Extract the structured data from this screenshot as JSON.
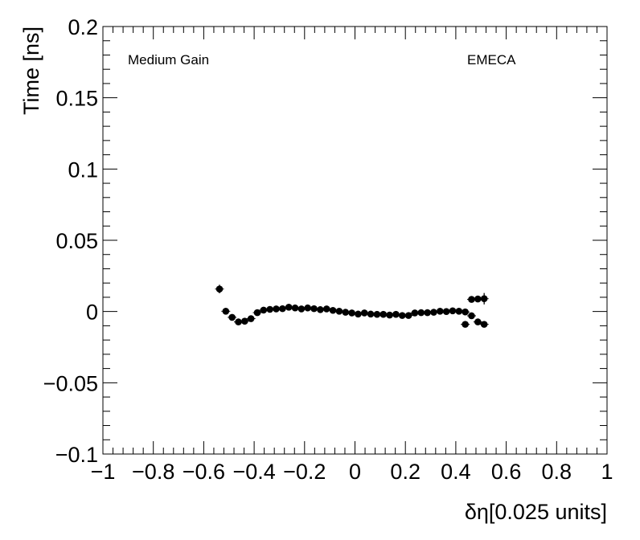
{
  "chart_data": {
    "type": "scatter",
    "title": "",
    "xlabel": "δη[0.025 units]",
    "ylabel": "Time [ns]",
    "xlim": [
      -1,
      1
    ],
    "ylim": [
      -0.1,
      0.2
    ],
    "x_ticks": [
      "−1",
      "−0.8",
      "−0.6",
      "−0.4",
      "−0.2",
      "0",
      "0.2",
      "0.4",
      "0.6",
      "0.8",
      "1"
    ],
    "x_tick_values": [
      -1,
      -0.8,
      -0.6,
      -0.4,
      -0.2,
      0,
      0.2,
      0.4,
      0.6,
      0.8,
      1
    ],
    "y_ticks": [
      "−0.1",
      "−0.05",
      "0",
      "0.05",
      "0.1",
      "0.15",
      "0.2"
    ],
    "y_tick_values": [
      -0.1,
      -0.05,
      0,
      0.05,
      0.1,
      0.15,
      0.2
    ],
    "annotations": {
      "gain": "Medium Gain",
      "region": "EMECA"
    },
    "grid": false,
    "marker_color": "#000000",
    "series": [
      {
        "x": [
          -0.5375,
          -0.5125,
          -0.4875,
          -0.4625,
          -0.4375,
          -0.4125,
          -0.3875,
          -0.3625,
          -0.3375,
          -0.3125,
          -0.2875,
          -0.2625,
          -0.2375,
          -0.2125,
          -0.1875,
          -0.1625,
          -0.1375,
          -0.1125,
          -0.0875,
          -0.0625,
          -0.0375,
          -0.0125,
          0.0125,
          0.0375,
          0.0625,
          0.0875,
          0.1125,
          0.1375,
          0.1625,
          0.1875,
          0.2125,
          0.2375,
          0.2625,
          0.2875,
          0.3125,
          0.3375,
          0.3625,
          0.3875,
          0.4125,
          0.4375,
          0.4625,
          0.4875,
          0.5125
        ],
        "y": [
          0.0158,
          0.0002,
          -0.0041,
          -0.0073,
          -0.0068,
          -0.005,
          -0.0008,
          0.001,
          0.0015,
          0.0018,
          0.002,
          0.003,
          0.0025,
          0.0018,
          0.0025,
          0.002,
          0.0013,
          0.0018,
          0.0008,
          0.0002,
          -0.0005,
          -0.001,
          -0.0018,
          -0.001,
          -0.0018,
          -0.002,
          -0.002,
          -0.0025,
          -0.002,
          -0.0028,
          -0.0028,
          -0.001,
          -0.0008,
          -0.0008,
          -0.0005,
          0.0002,
          0.0,
          0.0005,
          0.0002,
          -0.0003,
          -0.003,
          -0.0073,
          -0.009
        ],
        "y_err": [
          0.003,
          0.001,
          0.0008,
          0.0006,
          0.0006,
          0.0005,
          0.0005,
          0.0005,
          0.0005,
          0.0005,
          0.0005,
          0.0005,
          0.0005,
          0.0005,
          0.0005,
          0.0005,
          0.0005,
          0.0005,
          0.0005,
          0.0005,
          0.0005,
          0.0005,
          0.0005,
          0.0005,
          0.0005,
          0.0005,
          0.0005,
          0.0005,
          0.0005,
          0.0005,
          0.0005,
          0.0005,
          0.0005,
          0.0005,
          0.0005,
          0.0005,
          0.0005,
          0.0005,
          0.0005,
          0.0005,
          0.0006,
          0.0008,
          0.001
        ]
      },
      {
        "x": [
          0.4375,
          0.4625,
          0.4875,
          0.5125
        ],
        "y": [
          -0.009,
          0.0085,
          0.0088,
          0.009
        ],
        "y_err": [
          0.001,
          0.0015,
          0.002,
          0.004
        ]
      }
    ]
  }
}
